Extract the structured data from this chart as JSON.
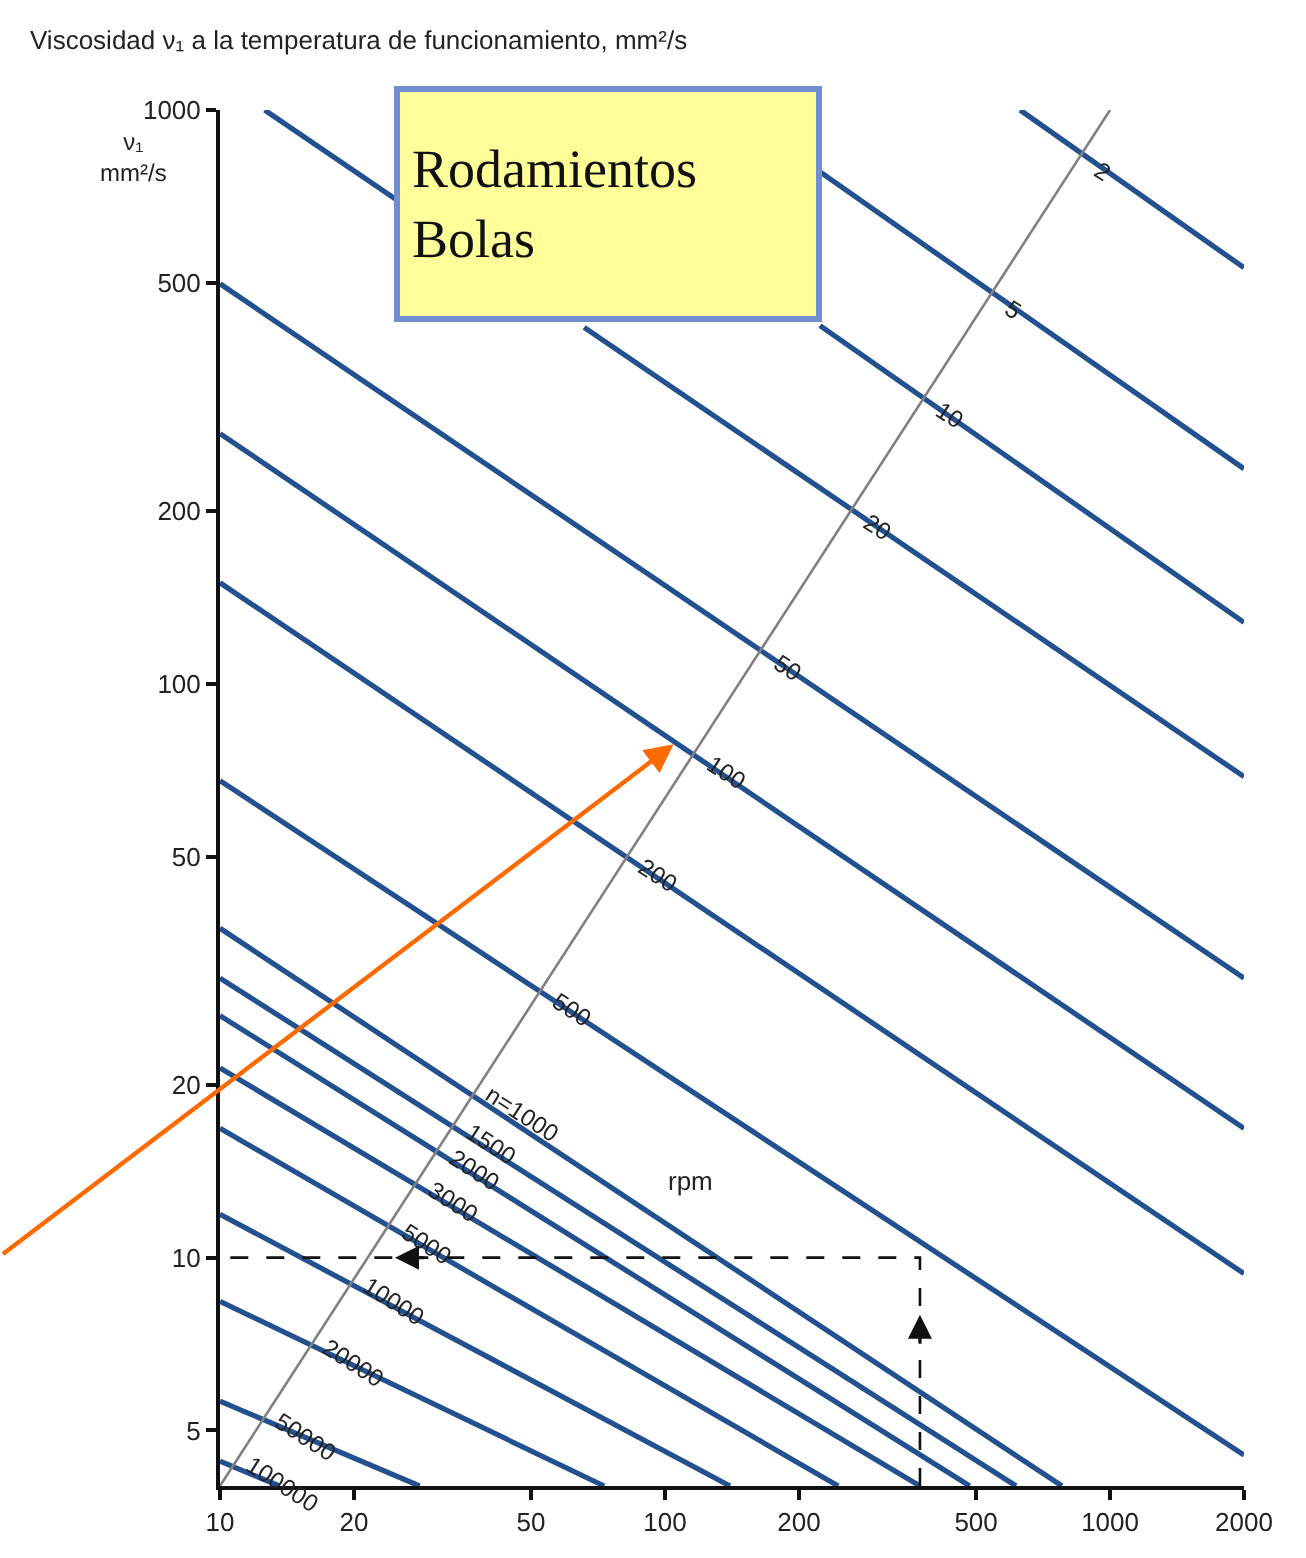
{
  "chart_data": {
    "type": "line",
    "title": "Viscosidad ν₁ a la temperatura de funcionamiento, mm²/s",
    "ylabel": "ν₁\nmm²/s",
    "annotations": [
      "Rodamientos\nBolas",
      "rpm"
    ],
    "log": "xy",
    "xlim": [
      10,
      2000
    ],
    "ylim": [
      4,
      1000
    ],
    "xticks": [
      10,
      20,
      50,
      100,
      200,
      500,
      1000,
      2000
    ],
    "yticks": [
      5,
      10,
      20,
      50,
      100,
      200,
      500,
      1000
    ],
    "grid": false,
    "marker": "none",
    "series": [
      {
        "name": "2",
        "color": "#23508f",
        "x": [
          628,
          2000
        ],
        "values": [
          1000,
          531
        ]
      },
      {
        "name": "5",
        "color": "#23508f",
        "x": [
          223,
          2000
        ],
        "values": [
          780,
          237
        ]
      },
      {
        "name": "10",
        "color": "#23508f",
        "x": [
          223,
          2000
        ],
        "values": [
          421,
          128
        ]
      },
      {
        "name": "20",
        "color": "#23508f",
        "x": [
          12.6,
          24.9,
          45,
          65.8,
          2000
        ],
        "values": [
          1000,
          698,
          null,
          418,
          68.9
        ]
      },
      {
        "name": "50",
        "color": "#23508f",
        "x": [
          10,
          2000
        ],
        "values": [
          498,
          30.7
        ]
      },
      {
        "name": "100",
        "color": "#23508f",
        "x": [
          10,
          2000
        ],
        "values": [
          273,
          16.8
        ]
      },
      {
        "name": "200",
        "color": "#23508f",
        "x": [
          10,
          2000
        ],
        "values": [
          150,
          9.38
        ]
      },
      {
        "name": "500",
        "color": "#23508f",
        "x": [
          10,
          2000
        ],
        "values": [
          67.8,
          4.53
        ]
      },
      {
        "name": "n=1000",
        "color": "#23508f",
        "x": [
          10,
          780
        ],
        "values": [
          37.5,
          4
        ]
      },
      {
        "name": "1500",
        "color": "#23508f",
        "x": [
          10,
          615
        ],
        "values": [
          30.7,
          4
        ]
      },
      {
        "name": "2000",
        "color": "#23508f",
        "x": [
          10,
          484
        ],
        "values": [
          26.4,
          4
        ]
      },
      {
        "name": "3000",
        "color": "#23508f",
        "x": [
          10,
          374
        ],
        "values": [
          21.4,
          4
        ]
      },
      {
        "name": "5000",
        "color": "#23508f",
        "x": [
          10,
          245
        ],
        "values": [
          16.8,
          4
        ]
      },
      {
        "name": "10000",
        "color": "#23508f",
        "x": [
          10,
          140
        ],
        "values": [
          11.9,
          4
        ]
      },
      {
        "name": "20000",
        "color": "#23508f",
        "x": [
          10,
          73
        ],
        "values": [
          8.39,
          4
        ]
      },
      {
        "name": "50000",
        "color": "#23508f",
        "x": [
          10,
          28.1
        ],
        "values": [
          5.62,
          4
        ]
      },
      {
        "name": "100000",
        "color": "#23508f",
        "x": [
          10,
          13.6
        ],
        "values": [
          4.42,
          4
        ]
      },
      {
        "color": "#808080",
        "x": [
          10,
          1000
        ],
        "values": [
          4,
          1000
        ]
      },
      {
        "color": "#111111",
        "x": [
          374,
          374,
          10
        ],
        "values": [
          4,
          10,
          10
        ],
        "line_style": "dashed"
      }
    ]
  }
}
